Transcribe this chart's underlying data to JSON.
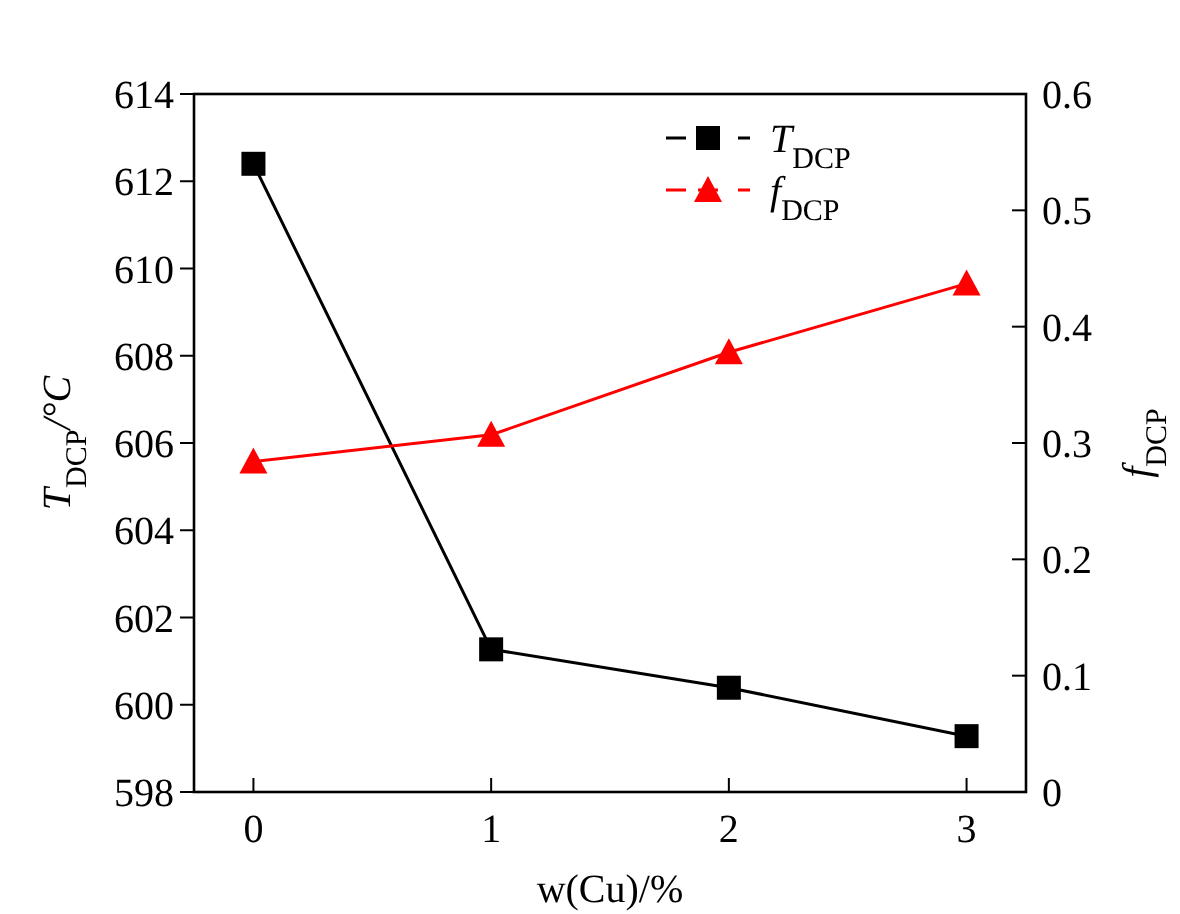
{
  "chart_data": {
    "type": "line",
    "xlabel": "w(Cu)/%",
    "ylabel": "T$_{DCP}$/°C",
    "y2label": "f$_{DCP}$",
    "x": [
      0,
      1,
      2,
      3
    ],
    "xlim": [
      -0.25,
      3.25
    ],
    "xticks": [
      0,
      1,
      2,
      3
    ],
    "ylim": [
      598,
      614
    ],
    "yticks": [
      598,
      600,
      602,
      604,
      606,
      608,
      610,
      612,
      614
    ],
    "y2lim": [
      0,
      0.6
    ],
    "y2ticks": [
      0,
      0.1,
      0.2,
      0.3,
      0.4,
      0.5,
      0.6
    ],
    "legend": "top right",
    "grid": false,
    "series": [
      {
        "name": "T$_{DCP}$",
        "color": "#000000",
        "marker": "square",
        "values": [
          612.4,
          601.27,
          600.39,
          599.28
        ]
      },
      {
        "name": "f$_{DCP}$",
        "color": "#ff0000",
        "marker": "triangle",
        "axis": "y2",
        "values": [
          0.284,
          0.307,
          0.378,
          0.437
        ]
      }
    ]
  }
}
